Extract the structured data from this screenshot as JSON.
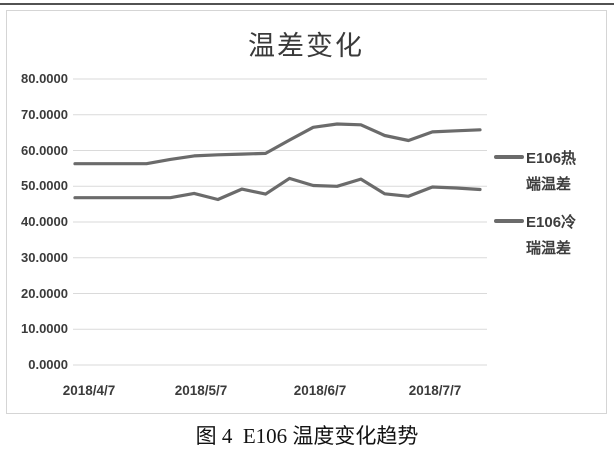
{
  "chart": {
    "title": "温差变化",
    "y_axis_labels": [
      "80.0000",
      "70.0000",
      "60.0000",
      "50.0000",
      "40.0000",
      "30.0000",
      "20.0000",
      "10.0000",
      "0.0000"
    ],
    "x_axis_labels": [
      "2018/4/7",
      "2018/5/7",
      "2018/6/7",
      "2018/7/7"
    ],
    "legend": [
      {
        "line1": "E106热",
        "line2": "端温差"
      },
      {
        "line1": "E106冷",
        "line2": "瑞温差"
      }
    ]
  },
  "caption": "图 4  E106 温度变化趋势",
  "colors": {
    "series_line": "#6b6b6b",
    "grid_line": "#dadada",
    "axis_text": "#3b3b3b",
    "frame_border": "#d5d5d5",
    "top_rule": "#343434"
  },
  "chart_data": {
    "type": "line",
    "title": "温差变化",
    "x_tick_labels": [
      "2018/4/7",
      "2018/5/7",
      "2018/6/7",
      "2018/7/7"
    ],
    "y_ticks": [
      0,
      10,
      20,
      30,
      40,
      50,
      60,
      70,
      80
    ],
    "ylim": [
      0,
      80
    ],
    "grid": true,
    "legend_position": "right",
    "series": [
      {
        "name": "E106热端温差",
        "values": [
          56.3,
          56.3,
          56.3,
          56.3,
          57.5,
          58.5,
          58.8,
          59.0,
          59.2,
          62.9,
          66.5,
          67.4,
          67.2,
          64.2,
          62.8,
          65.2,
          65.5,
          65.8
        ]
      },
      {
        "name": "E106冷瑞温差",
        "values": [
          46.8,
          46.8,
          46.8,
          46.8,
          46.8,
          48.0,
          46.3,
          49.2,
          47.8,
          52.2,
          50.2,
          50.0,
          52.0,
          47.9,
          47.2,
          49.8,
          49.5,
          49.1
        ]
      }
    ]
  }
}
